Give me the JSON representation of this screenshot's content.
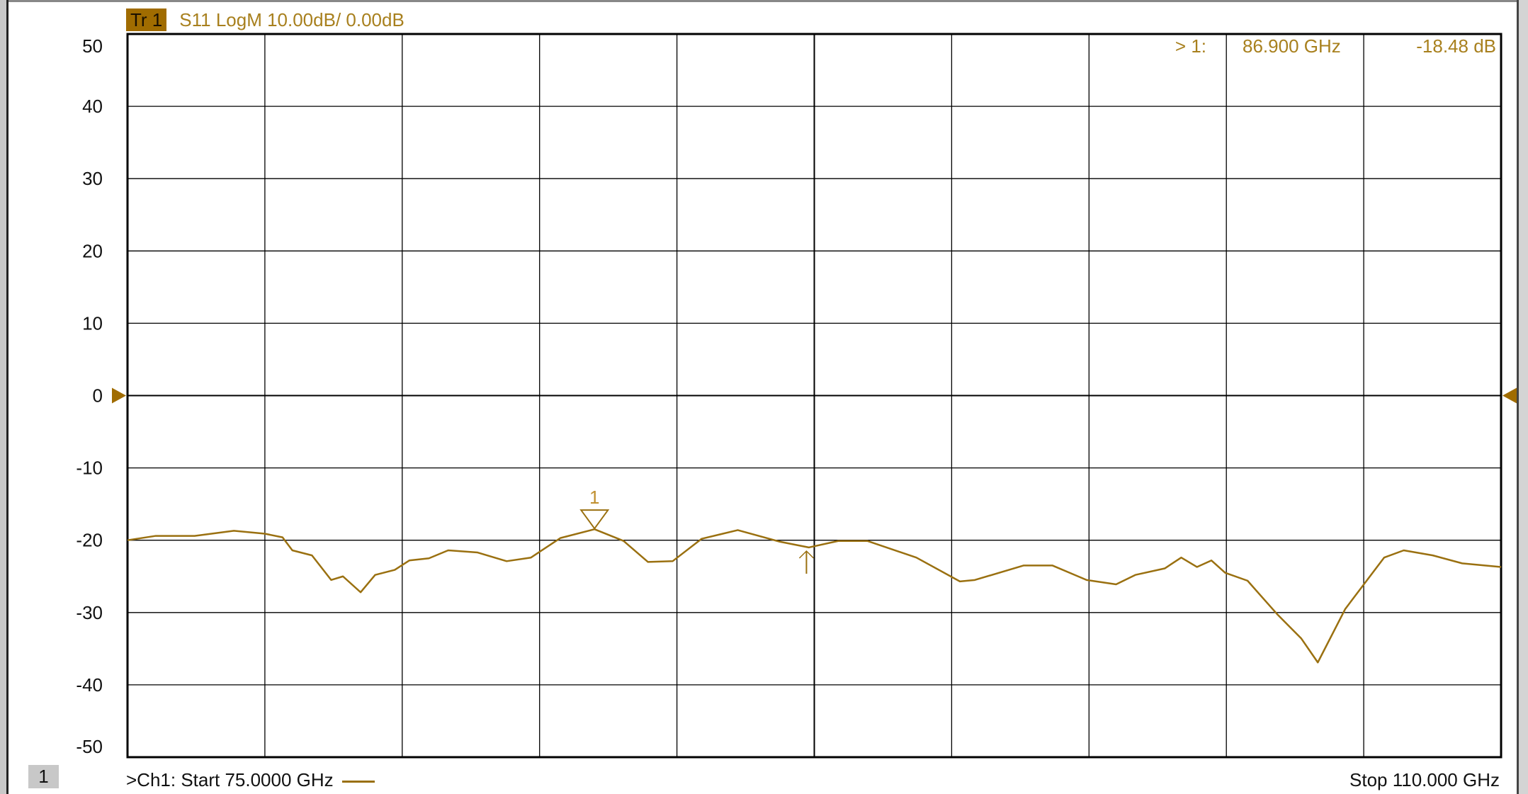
{
  "header": {
    "trace_label": "Tr 1",
    "trace_info": "S11 LogM 10.00dB/  0.00dB"
  },
  "marker_readout": {
    "marker": "> 1:",
    "frequency": "86.900  GHz",
    "value": "-18.48 dB"
  },
  "footer": {
    "channel_badge": "1",
    "start": ">Ch1:  Start  75.0000 GHz",
    "stop": "Stop  110.000 GHz"
  },
  "colors": {
    "trace": "#9a7010",
    "label_bg": "#a06c00",
    "grid": "#000000"
  },
  "chart_data": {
    "type": "line",
    "xlim": [
      75,
      110
    ],
    "ylim": [
      -50,
      50
    ],
    "x_unit": "GHz",
    "y_unit": "dB",
    "y_ticks": [
      "50",
      "40",
      "30",
      "20",
      "10",
      "0",
      "-10",
      "-20",
      "-30",
      "-40",
      "-50"
    ],
    "grid": true,
    "reference_level": 0,
    "series": [
      {
        "x": [
          75.0,
          75.72,
          76.71,
          77.71,
          78.5,
          78.95,
          79.2,
          79.7,
          80.19,
          80.49,
          80.94,
          81.31,
          81.81,
          82.18,
          82.68,
          83.17,
          83.92,
          84.66,
          85.28,
          86.03,
          86.9,
          87.64,
          88.26,
          88.89,
          89.63,
          90.55,
          91.62,
          92.36,
          93.11,
          93.85,
          95.1,
          96.21,
          96.59,
          97.83,
          98.57,
          99.44,
          100.19,
          100.68,
          101.43,
          101.85,
          102.25,
          102.62,
          102.97,
          103.54,
          104.29,
          104.91,
          105.33,
          106.03,
          107.02,
          107.52,
          108.26,
          109.01,
          110.0
        ],
        "y": [
          -20.0,
          -19.4,
          -19.4,
          -18.7,
          -19.1,
          -19.6,
          -21.4,
          -22.1,
          -25.5,
          -25.0,
          -27.2,
          -24.8,
          -24.1,
          -22.8,
          -22.5,
          -21.4,
          -21.7,
          -22.9,
          -22.4,
          -19.7,
          -18.48,
          -20.1,
          -23.0,
          -22.9,
          -19.8,
          -18.6,
          -20.2,
          -21.0,
          -20.1,
          -20.1,
          -22.4,
          -25.7,
          -25.5,
          -23.5,
          -23.5,
          -25.5,
          -26.1,
          -24.8,
          -23.9,
          -22.4,
          -23.7,
          -22.8,
          -24.5,
          -25.6,
          -30.2,
          -33.6,
          -36.9,
          -29.5,
          -22.4,
          -21.4,
          -22.1,
          -23.2,
          -23.7
        ]
      }
    ],
    "markers": [
      {
        "label": "1",
        "x": 86.9,
        "y": -18.48
      }
    ],
    "arrow_marker_x": 92.3
  }
}
